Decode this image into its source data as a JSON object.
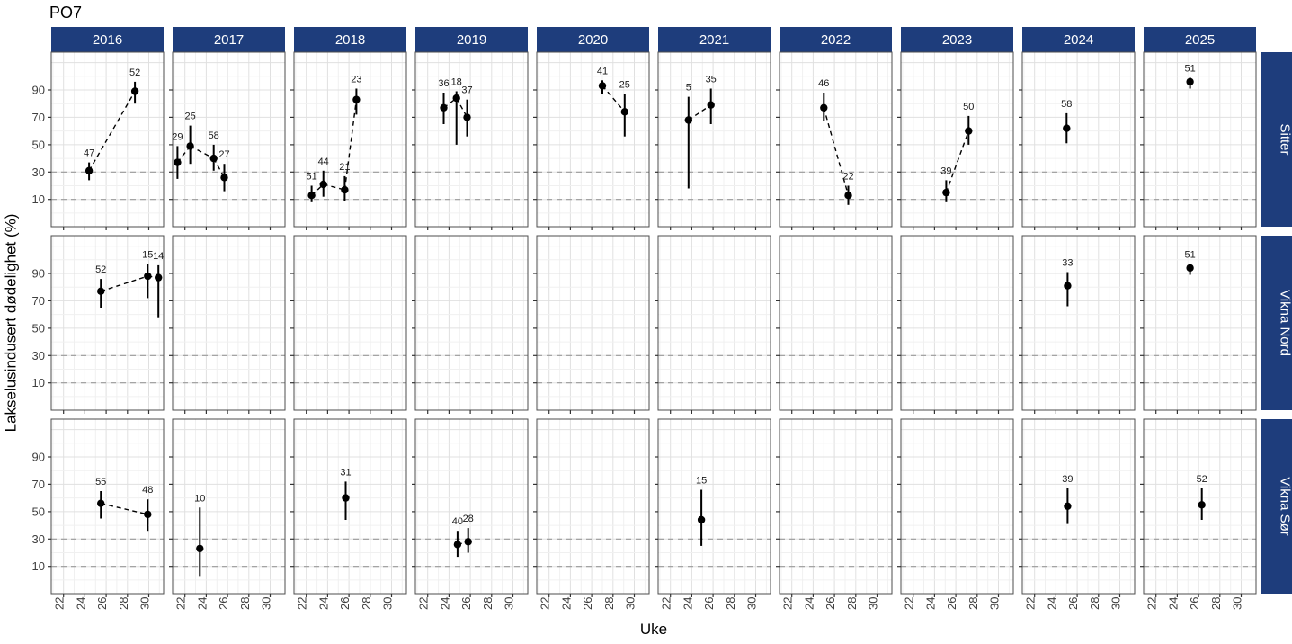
{
  "title": "PO7",
  "axes": {
    "x_title": "Uke",
    "y_title": "Lakselusindusert dødelighet (%)",
    "x_ticks": [
      22,
      24,
      26,
      28,
      30
    ],
    "y_ticks": [
      10,
      30,
      50,
      70,
      90
    ]
  },
  "colors": {
    "strip": "#1e3d7c",
    "strip_text": "#ffffff",
    "threshold_line": "#9a9a9a",
    "grid_major": "#e0e0e0",
    "grid_minor": "#f0f0f0",
    "panel_border": "#4d4d4d",
    "data": "#000000"
  },
  "chart_data": {
    "type": "scatter",
    "columns": [
      "2016",
      "2017",
      "2018",
      "2019",
      "2020",
      "2021",
      "2022",
      "2023",
      "2024",
      "2025"
    ],
    "rows": [
      "Sitter",
      "Vikna Nord",
      "Vikna Sør"
    ],
    "x_domain": [
      20.84,
      31.39
    ],
    "y_domain": [
      -10,
      117.6
    ],
    "thresholds": [
      10,
      30
    ],
    "grid": true,
    "series": [
      {
        "row": "Sitter",
        "year": "2016",
        "points": [
          {
            "uke": 24.4,
            "verdi": 31,
            "lo": 24,
            "hi": 37,
            "n": 47
          },
          {
            "uke": 28.7,
            "verdi": 89,
            "lo": 80,
            "hi": 96,
            "n": 52
          }
        ]
      },
      {
        "row": "Sitter",
        "year": "2017",
        "points": [
          {
            "uke": 21.3,
            "verdi": 37,
            "lo": 25,
            "hi": 49,
            "n": 29
          },
          {
            "uke": 22.5,
            "verdi": 49,
            "lo": 36,
            "hi": 64,
            "n": 25
          },
          {
            "uke": 24.7,
            "verdi": 40,
            "lo": 31,
            "hi": 50,
            "n": 58
          },
          {
            "uke": 25.7,
            "verdi": 26,
            "lo": 16,
            "hi": 36,
            "n": 27
          }
        ]
      },
      {
        "row": "Sitter",
        "year": "2018",
        "points": [
          {
            "uke": 22.5,
            "verdi": 13,
            "lo": 8,
            "hi": 20,
            "n": 51
          },
          {
            "uke": 23.6,
            "verdi": 21,
            "lo": 12,
            "hi": 31,
            "n": 44
          },
          {
            "uke": 25.6,
            "verdi": 17,
            "lo": 9,
            "hi": 27,
            "n": 21
          },
          {
            "uke": 26.7,
            "verdi": 83,
            "lo": 72,
            "hi": 91,
            "n": 23
          }
        ]
      },
      {
        "row": "Sitter",
        "year": "2019",
        "points": [
          {
            "uke": 23.5,
            "verdi": 77,
            "lo": 65,
            "hi": 88,
            "n": 36
          },
          {
            "uke": 24.7,
            "verdi": 84,
            "lo": 50,
            "hi": 89,
            "n": 18
          },
          {
            "uke": 25.7,
            "verdi": 70,
            "lo": 56,
            "hi": 83,
            "n": 37
          }
        ]
      },
      {
        "row": "Sitter",
        "year": "2020",
        "points": [
          {
            "uke": 27.0,
            "verdi": 93,
            "lo": 87,
            "hi": 97,
            "n": 41
          },
          {
            "uke": 29.1,
            "verdi": 74,
            "lo": 56,
            "hi": 87,
            "n": 25
          }
        ]
      },
      {
        "row": "Sitter",
        "year": "2021",
        "points": [
          {
            "uke": 23.7,
            "verdi": 68,
            "lo": 18,
            "hi": 85,
            "n": 5
          },
          {
            "uke": 25.8,
            "verdi": 79,
            "lo": 65,
            "hi": 91,
            "n": 35
          }
        ]
      },
      {
        "row": "Sitter",
        "year": "2022",
        "points": [
          {
            "uke": 25.0,
            "verdi": 77,
            "lo": 67,
            "hi": 88,
            "n": 46
          },
          {
            "uke": 27.3,
            "verdi": 13,
            "lo": 6,
            "hi": 20,
            "n": 22
          }
        ]
      },
      {
        "row": "Sitter",
        "year": "2023",
        "points": [
          {
            "uke": 25.1,
            "verdi": 15,
            "lo": 8,
            "hi": 24,
            "n": 39
          },
          {
            "uke": 27.2,
            "verdi": 60,
            "lo": 50,
            "hi": 71,
            "n": 50
          }
        ]
      },
      {
        "row": "Sitter",
        "year": "2024",
        "points": [
          {
            "uke": 25.0,
            "verdi": 62,
            "lo": 51,
            "hi": 73,
            "n": 58
          }
        ]
      },
      {
        "row": "Sitter",
        "year": "2025",
        "points": [
          {
            "uke": 25.2,
            "verdi": 96,
            "lo": 91,
            "hi": 99,
            "n": 51
          }
        ]
      },
      {
        "row": "Vikna Nord",
        "year": "2016",
        "points": [
          {
            "uke": 25.5,
            "verdi": 77,
            "lo": 65,
            "hi": 86,
            "n": 52
          },
          {
            "uke": 29.9,
            "verdi": 88,
            "lo": 72,
            "hi": 97,
            "n": 15
          },
          {
            "uke": 30.9,
            "verdi": 87,
            "lo": 58,
            "hi": 96,
            "n": 14
          }
        ]
      },
      {
        "row": "Vikna Nord",
        "year": "2024",
        "points": [
          {
            "uke": 25.1,
            "verdi": 81,
            "lo": 66,
            "hi": 91,
            "n": 33
          }
        ]
      },
      {
        "row": "Vikna Nord",
        "year": "2025",
        "points": [
          {
            "uke": 25.2,
            "verdi": 94,
            "lo": 89,
            "hi": 97,
            "n": 51
          }
        ]
      },
      {
        "row": "Vikna Sør",
        "year": "2016",
        "points": [
          {
            "uke": 25.5,
            "verdi": 56,
            "lo": 45,
            "hi": 65,
            "n": 55
          },
          {
            "uke": 29.9,
            "verdi": 48,
            "lo": 36,
            "hi": 59,
            "n": 48
          }
        ]
      },
      {
        "row": "Vikna Sør",
        "year": "2017",
        "points": [
          {
            "uke": 23.4,
            "verdi": 23,
            "lo": 3,
            "hi": 53,
            "n": 10
          }
        ]
      },
      {
        "row": "Vikna Sør",
        "year": "2018",
        "points": [
          {
            "uke": 25.7,
            "verdi": 60,
            "lo": 44,
            "hi": 72,
            "n": 31
          }
        ]
      },
      {
        "row": "Vikna Sør",
        "year": "2019",
        "points": [
          {
            "uke": 24.8,
            "verdi": 26,
            "lo": 17,
            "hi": 36,
            "n": 40
          },
          {
            "uke": 25.8,
            "verdi": 28,
            "lo": 20,
            "hi": 38,
            "n": 28
          }
        ]
      },
      {
        "row": "Vikna Sør",
        "year": "2021",
        "points": [
          {
            "uke": 24.9,
            "verdi": 44,
            "lo": 25,
            "hi": 66,
            "n": 15
          }
        ]
      },
      {
        "row": "Vikna Sør",
        "year": "2024",
        "points": [
          {
            "uke": 25.1,
            "verdi": 54,
            "lo": 41,
            "hi": 67,
            "n": 39
          }
        ]
      },
      {
        "row": "Vikna Sør",
        "year": "2025",
        "points": [
          {
            "uke": 26.3,
            "verdi": 55,
            "lo": 44,
            "hi": 67,
            "n": 52
          }
        ]
      }
    ]
  }
}
